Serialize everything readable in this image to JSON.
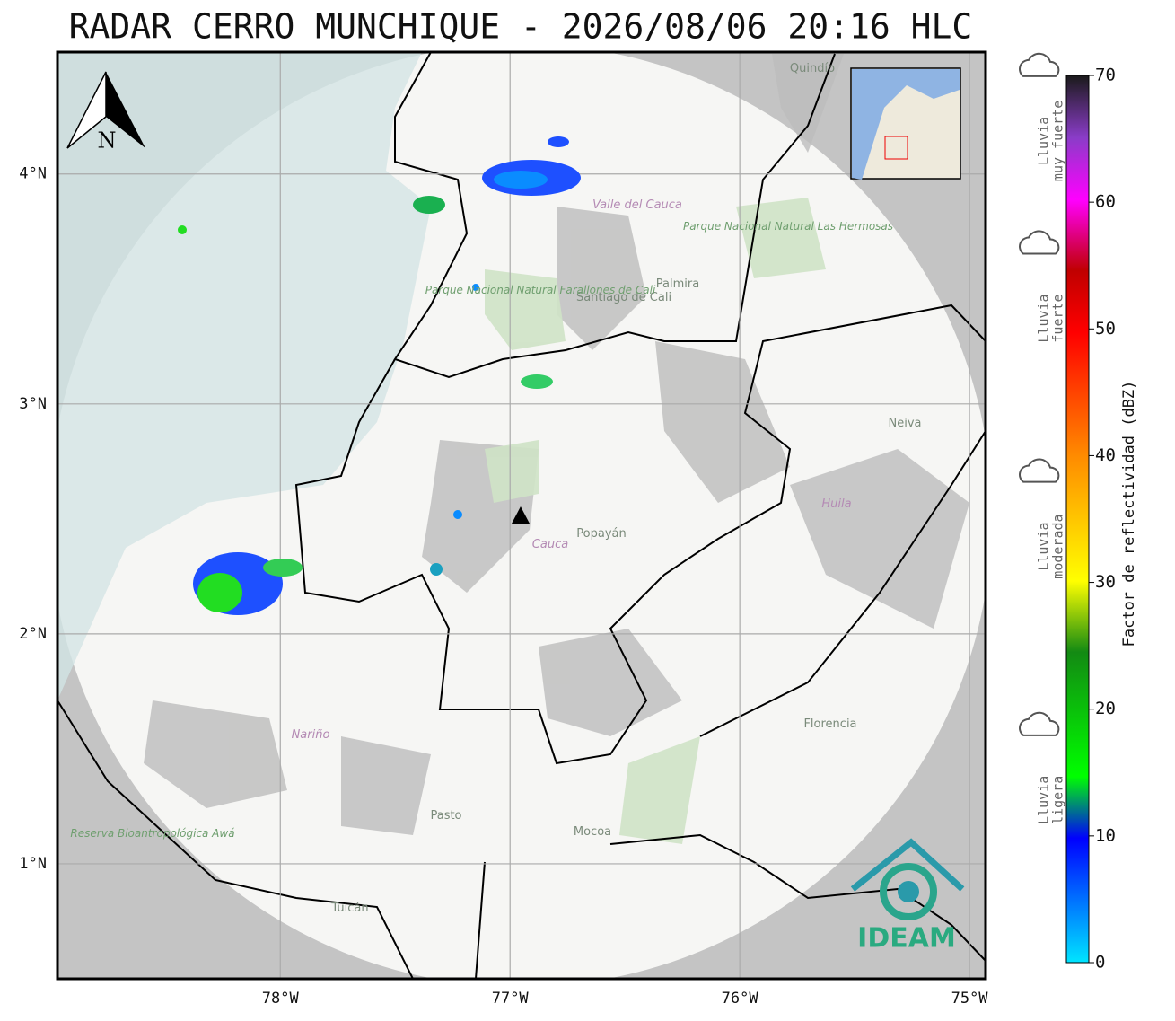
{
  "title": "RADAR CERRO MUNCHIQUE - 2026/08/06 20:16 HLC",
  "map": {
    "latlim": [
      0.5,
      4.53
    ],
    "lonlim": [
      -78.97,
      -74.93
    ],
    "lat_ticks": [
      {
        "value": 4,
        "label": "4°N"
      },
      {
        "value": 3,
        "label": "3°N"
      },
      {
        "value": 2,
        "label": "2°N"
      },
      {
        "value": 1,
        "label": "1°N"
      }
    ],
    "lon_ticks": [
      {
        "value": -78,
        "label": "78°W"
      },
      {
        "value": -77,
        "label": "77°W"
      },
      {
        "value": -76,
        "label": "76°W"
      },
      {
        "value": -75,
        "label": "75°W"
      }
    ],
    "north_label": "N",
    "places": [
      "Quindío",
      "Valle del Cauca",
      "Palmira",
      "Santiago de Cali",
      "Parque Nacional Natural Farallones de Cali",
      "Parque Nacional Natural Las Hermosas",
      "Neiva",
      "Huila",
      "Popayán",
      "Cauca",
      "Nariño",
      "Pasto",
      "Mocoa",
      "Florencia",
      "Reserva Bioantropológica Awá",
      "Tulcán"
    ],
    "logo": "IDEAM"
  },
  "colorbar": {
    "label": "Factor de reflectividad (dBZ)",
    "lim": [
      0,
      70
    ],
    "ticks": [
      0,
      10,
      20,
      30,
      40,
      50,
      60,
      70
    ],
    "categories": [
      {
        "lines": [
          "Lluvia",
          "muy fuerte"
        ],
        "value": 62
      },
      {
        "lines": [
          "Lluvia",
          "fuerte"
        ],
        "value": 48
      },
      {
        "lines": [
          "Lluvia",
          "moderada"
        ],
        "value": 30
      },
      {
        "lines": [
          "Lluvia",
          "ligera"
        ],
        "value": 10
      }
    ]
  }
}
